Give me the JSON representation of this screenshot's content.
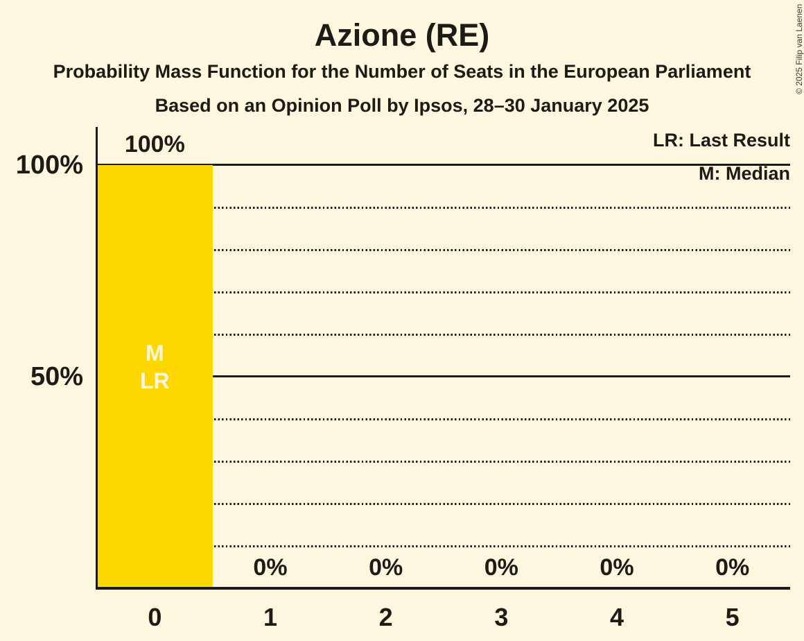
{
  "title": "Azione (RE)",
  "subtitle": "Probability Mass Function for the Number of Seats in the European Parliament",
  "subtitle2": "Based on an Opinion Poll by Ipsos, 28–30 January 2025",
  "copyright": "© 2025 Filip van Laenen",
  "legend": {
    "last_result": "LR: Last Result",
    "median": "M: Median"
  },
  "colors": {
    "background": "#FCF7DE",
    "bar": "#FFD700",
    "text": "#1C1B15",
    "bar_text": "#FCF7DE"
  },
  "chart_data": {
    "type": "bar",
    "title": "Azione (RE)",
    "categories": [
      "0",
      "1",
      "2",
      "3",
      "4",
      "5"
    ],
    "values": [
      100,
      0,
      0,
      0,
      0,
      0
    ],
    "value_labels": [
      "100%",
      "0%",
      "0%",
      "0%",
      "0%",
      "0%"
    ],
    "ylim": [
      0,
      100
    ],
    "yticks": [
      {
        "value": 100,
        "label": "100%"
      },
      {
        "value": 50,
        "label": "50%"
      }
    ],
    "gridlines": {
      "solid": [
        50,
        100
      ],
      "dotted": [
        10,
        20,
        30,
        40,
        60,
        70,
        80,
        90
      ]
    },
    "legend_position": "top-right",
    "bar_annotations": [
      {
        "category_index": 0,
        "lines": [
          "M",
          "LR"
        ]
      }
    ]
  }
}
